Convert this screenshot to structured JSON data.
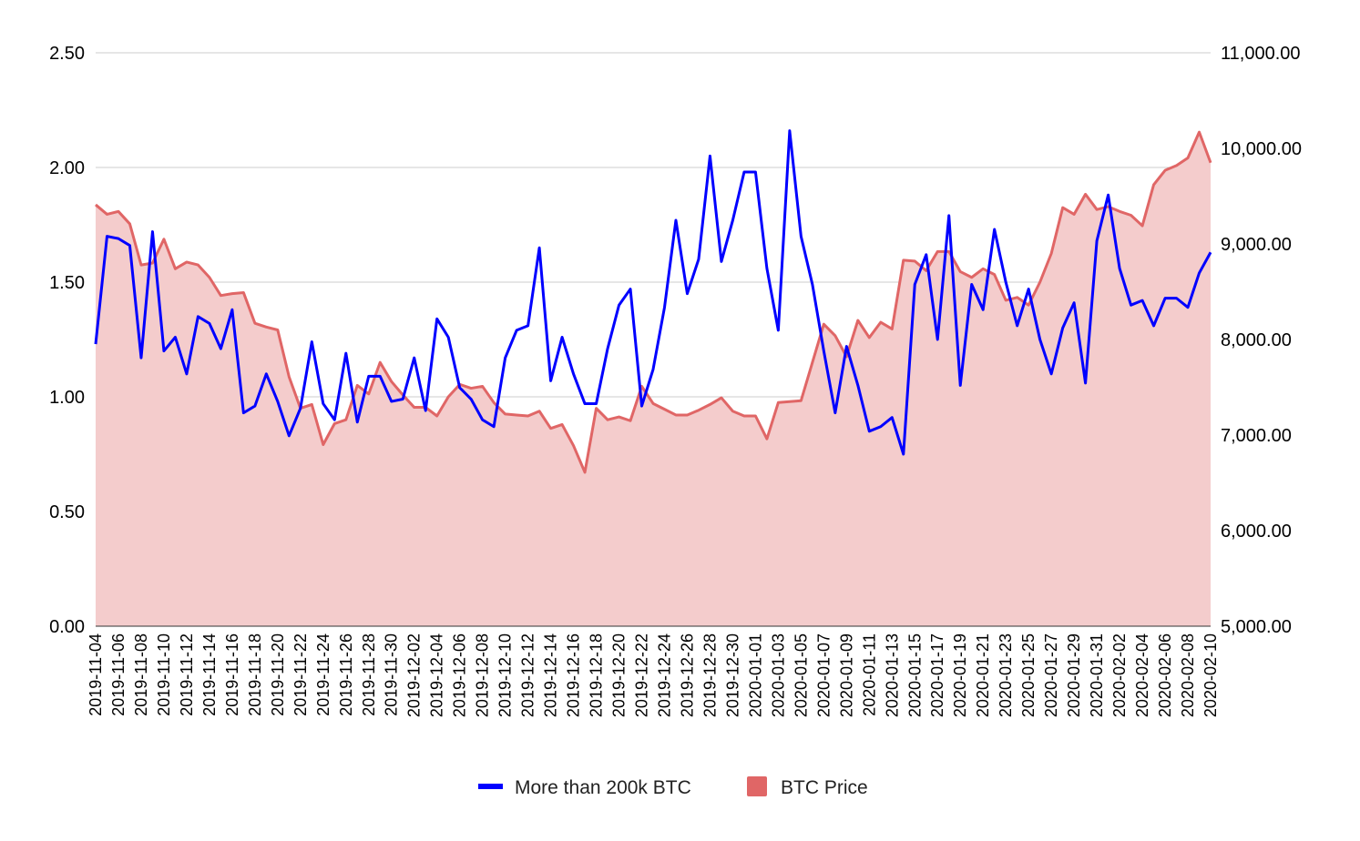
{
  "chart_data": {
    "type": "line",
    "title": "",
    "xlabel": "",
    "ylabel": "",
    "x": [
      "2019-11-04",
      "2019-11-05",
      "2019-11-06",
      "2019-11-07",
      "2019-11-08",
      "2019-11-09",
      "2019-11-10",
      "2019-11-11",
      "2019-11-12",
      "2019-11-13",
      "2019-11-14",
      "2019-11-15",
      "2019-11-16",
      "2019-11-17",
      "2019-11-18",
      "2019-11-19",
      "2019-11-20",
      "2019-11-21",
      "2019-11-22",
      "2019-11-23",
      "2019-11-24",
      "2019-11-25",
      "2019-11-26",
      "2019-11-27",
      "2019-11-28",
      "2019-11-29",
      "2019-11-30",
      "2019-12-01",
      "2019-12-02",
      "2019-12-03",
      "2019-12-04",
      "2019-12-05",
      "2019-12-06",
      "2019-12-07",
      "2019-12-08",
      "2019-12-09",
      "2019-12-10",
      "2019-12-11",
      "2019-12-12",
      "2019-12-13",
      "2019-12-14",
      "2019-12-15",
      "2019-12-16",
      "2019-12-17",
      "2019-12-18",
      "2019-12-19",
      "2019-12-20",
      "2019-12-21",
      "2019-12-22",
      "2019-12-23",
      "2019-12-24",
      "2019-12-25",
      "2019-12-26",
      "2019-12-27",
      "2019-12-28",
      "2019-12-29",
      "2019-12-30",
      "2019-12-31",
      "2020-01-01",
      "2020-01-02",
      "2020-01-03",
      "2020-01-04",
      "2020-01-05",
      "2020-01-06",
      "2020-01-07",
      "2020-01-08",
      "2020-01-09",
      "2020-01-10",
      "2020-01-11",
      "2020-01-12",
      "2020-01-13",
      "2020-01-14",
      "2020-01-15",
      "2020-01-16",
      "2020-01-17",
      "2020-01-18",
      "2020-01-19",
      "2020-01-20",
      "2020-01-21",
      "2020-01-22",
      "2020-01-23",
      "2020-01-24",
      "2020-01-25",
      "2020-01-26",
      "2020-01-27",
      "2020-01-28",
      "2020-01-29",
      "2020-01-30",
      "2020-01-31",
      "2020-02-01",
      "2020-02-02",
      "2020-02-03",
      "2020-02-04",
      "2020-02-05",
      "2020-02-06",
      "2020-02-07",
      "2020-02-08",
      "2020-02-09",
      "2020-02-10"
    ],
    "xtick_labels": [
      "2019-11-04",
      "2019-11-06",
      "2019-11-08",
      "2019-11-10",
      "2019-11-12",
      "2019-11-14",
      "2019-11-16",
      "2019-11-18",
      "2019-11-20",
      "2019-11-22",
      "2019-11-24",
      "2019-11-26",
      "2019-11-28",
      "2019-11-30",
      "2019-12-02",
      "2019-12-04",
      "2019-12-06",
      "2019-12-08",
      "2019-12-10",
      "2019-12-12",
      "2019-12-14",
      "2019-12-16",
      "2019-12-18",
      "2019-12-20",
      "2019-12-22",
      "2019-12-24",
      "2019-12-26",
      "2019-12-28",
      "2019-12-30",
      "2020-01-01",
      "2020-01-03",
      "2020-01-05",
      "2020-01-07",
      "2020-01-09",
      "2020-01-11",
      "2020-01-13",
      "2020-01-15",
      "2020-01-17",
      "2020-01-19",
      "2020-01-21",
      "2020-01-23",
      "2020-01-25",
      "2020-01-27",
      "2020-01-29",
      "2020-01-31",
      "2020-02-02",
      "2020-02-04",
      "2020-02-06",
      "2020-02-08",
      "2020-02-10"
    ],
    "y_left": {
      "range": [
        0,
        2.5
      ],
      "ticks": [
        "0.00",
        "0.50",
        "1.00",
        "1.50",
        "2.00",
        "2.50"
      ]
    },
    "y_right": {
      "range": [
        5000,
        11000
      ],
      "ticks": [
        "5,000.00",
        "6,000.00",
        "7,000.00",
        "8,000.00",
        "9,000.00",
        "10,000.00",
        "11,000.00"
      ]
    },
    "grid": true,
    "legend_position": "bottom",
    "series": [
      {
        "name": "More than 200k BTC",
        "type": "line",
        "axis": "left",
        "color": "#0000ff",
        "values": [
          1.23,
          1.7,
          1.69,
          1.66,
          1.17,
          1.72,
          1.2,
          1.26,
          1.1,
          1.35,
          1.32,
          1.21,
          1.38,
          0.93,
          0.96,
          1.1,
          0.98,
          0.83,
          0.95,
          1.24,
          0.97,
          0.9,
          1.19,
          0.89,
          1.09,
          1.09,
          0.98,
          0.99,
          1.17,
          0.94,
          1.34,
          1.26,
          1.04,
          0.99,
          0.9,
          0.87,
          1.17,
          1.29,
          1.31,
          1.65,
          1.07,
          1.26,
          1.1,
          0.97,
          0.97,
          1.21,
          1.4,
          1.47,
          0.96,
          1.12,
          1.39,
          1.77,
          1.45,
          1.6,
          2.05,
          1.59,
          1.77,
          1.98,
          1.98,
          1.56,
          1.29,
          2.16,
          1.7,
          1.49,
          1.2,
          0.93,
          1.22,
          1.05,
          0.85,
          0.87,
          0.91,
          0.75,
          1.49,
          1.62,
          1.25,
          1.79,
          1.05,
          1.49,
          1.38,
          1.73,
          1.5,
          1.31,
          1.47,
          1.25,
          1.1,
          1.3,
          1.41,
          1.06,
          1.68,
          1.88,
          1.56,
          1.4,
          1.42,
          1.31,
          1.43,
          1.43,
          1.39,
          1.54,
          1.63
        ]
      },
      {
        "name": "BTC Price",
        "type": "area",
        "axis": "right",
        "color": "#e06666",
        "fill": "#f4cccc",
        "values": [
          9410,
          9310,
          9340,
          9210,
          8780,
          8800,
          9050,
          8740,
          8810,
          8780,
          8650,
          8460,
          8480,
          8490,
          8170,
          8130,
          8100,
          7610,
          7280,
          7320,
          6900,
          7120,
          7160,
          7520,
          7430,
          7760,
          7560,
          7420,
          7290,
          7290,
          7200,
          7400,
          7530,
          7490,
          7510,
          7340,
          7220,
          7210,
          7200,
          7250,
          7070,
          7110,
          6890,
          6610,
          7280,
          7160,
          7190,
          7150,
          7510,
          7330,
          7270,
          7210,
          7210,
          7260,
          7320,
          7390,
          7250,
          7200,
          7200,
          6960,
          7340,
          7350,
          7360,
          7760,
          8160,
          8040,
          7820,
          8200,
          8020,
          8180,
          8110,
          8830,
          8820,
          8720,
          8920,
          8920,
          8710,
          8650,
          8740,
          8680,
          8410,
          8440,
          8360,
          8600,
          8900,
          9380,
          9310,
          9520,
          9360,
          9390,
          9340,
          9300,
          9190,
          9620,
          9770,
          9820,
          9900,
          10170,
          9850
        ]
      }
    ]
  }
}
